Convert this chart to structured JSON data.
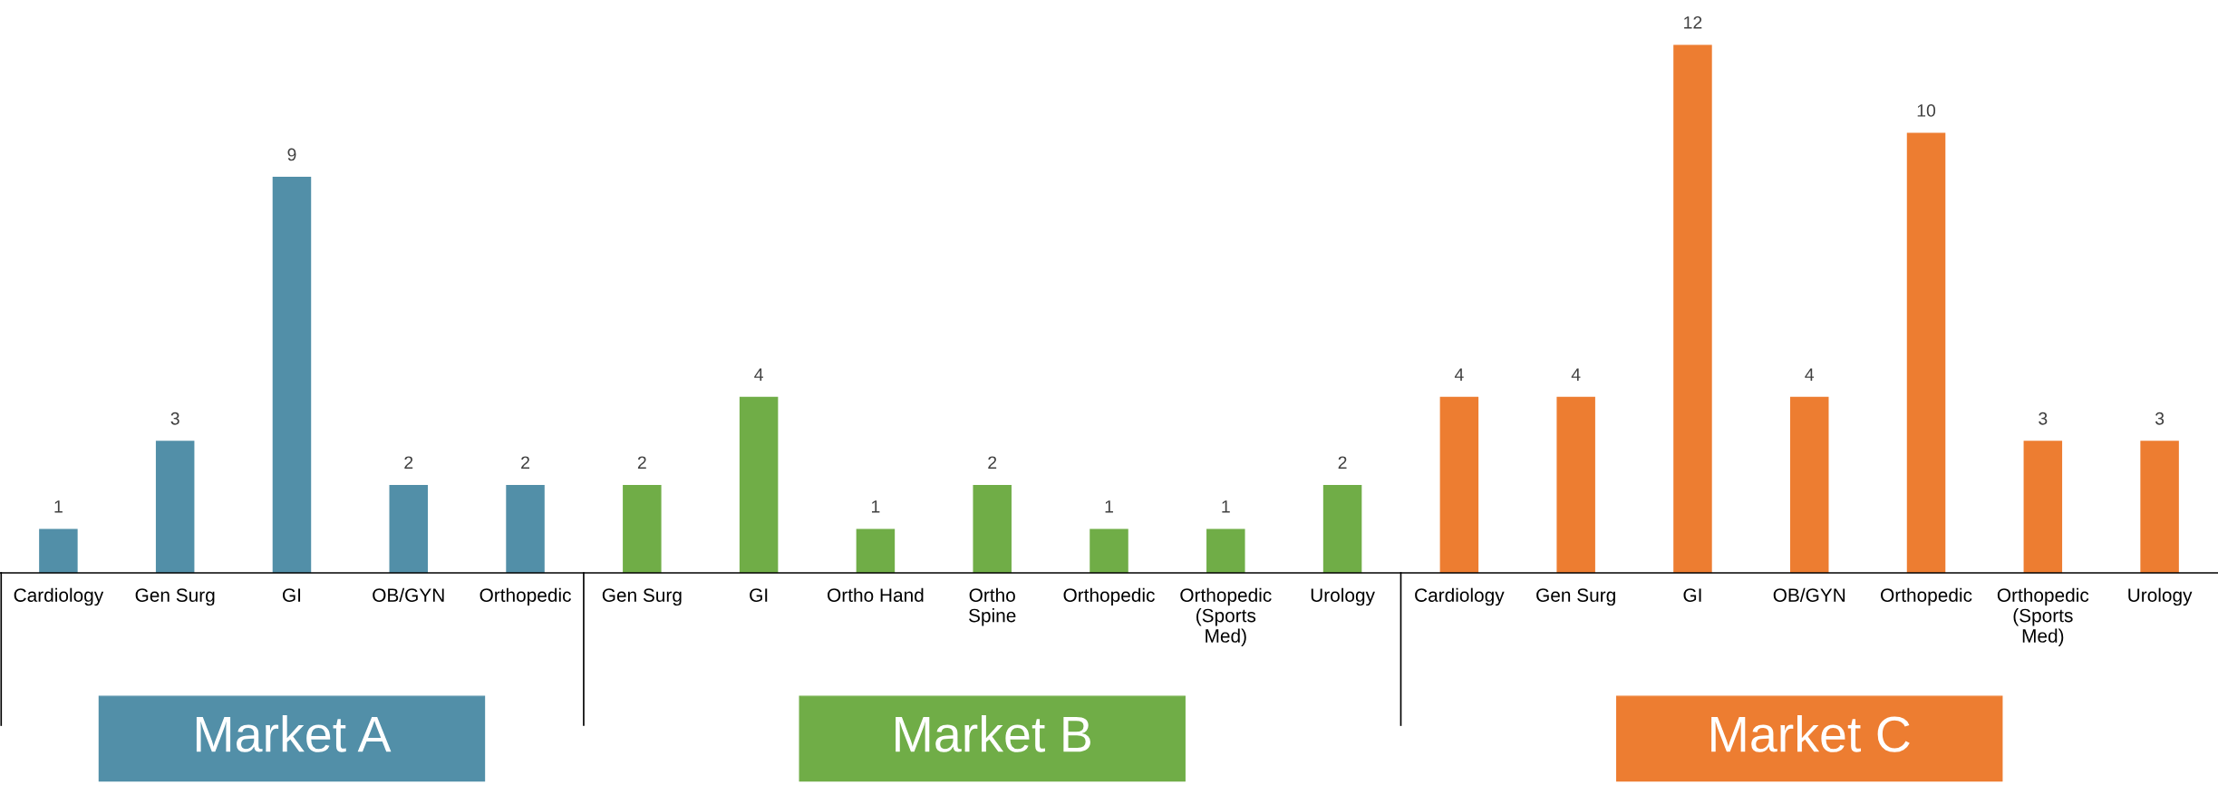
{
  "chart_data": {
    "type": "bar",
    "data_labels": true,
    "legend": false,
    "grid": false,
    "categories": [
      "Cardiology",
      "Gen Surg",
      "GI",
      "OB/GYN",
      "Orthopedic",
      "Gen Surg",
      "GI",
      "Ortho Hand",
      "Ortho\nSpine",
      "Orthopedic",
      "Orthopedic\n(Sports\nMed)",
      "Urology",
      "Cardiology",
      "Gen Surg",
      "GI",
      "OB/GYN",
      "Orthopedic",
      "Orthopedic\n(Sports\nMed)",
      "Urology"
    ],
    "series": [
      {
        "name": "Market A",
        "color": "#528fa8",
        "values": [
          1,
          3,
          9,
          2,
          2,
          null,
          null,
          null,
          null,
          null,
          null,
          null,
          null,
          null,
          null,
          null,
          null,
          null,
          null
        ]
      },
      {
        "name": "Market B",
        "color": "#70ad47",
        "values": [
          null,
          null,
          null,
          null,
          null,
          2,
          4,
          1,
          2,
          1,
          1,
          2,
          null,
          null,
          null,
          null,
          null,
          null,
          null
        ]
      },
      {
        "name": "Market C",
        "color": "#ed7d31",
        "values": [
          null,
          null,
          null,
          null,
          null,
          null,
          null,
          null,
          null,
          null,
          null,
          null,
          4,
          4,
          12,
          4,
          10,
          3,
          3
        ]
      }
    ]
  }
}
